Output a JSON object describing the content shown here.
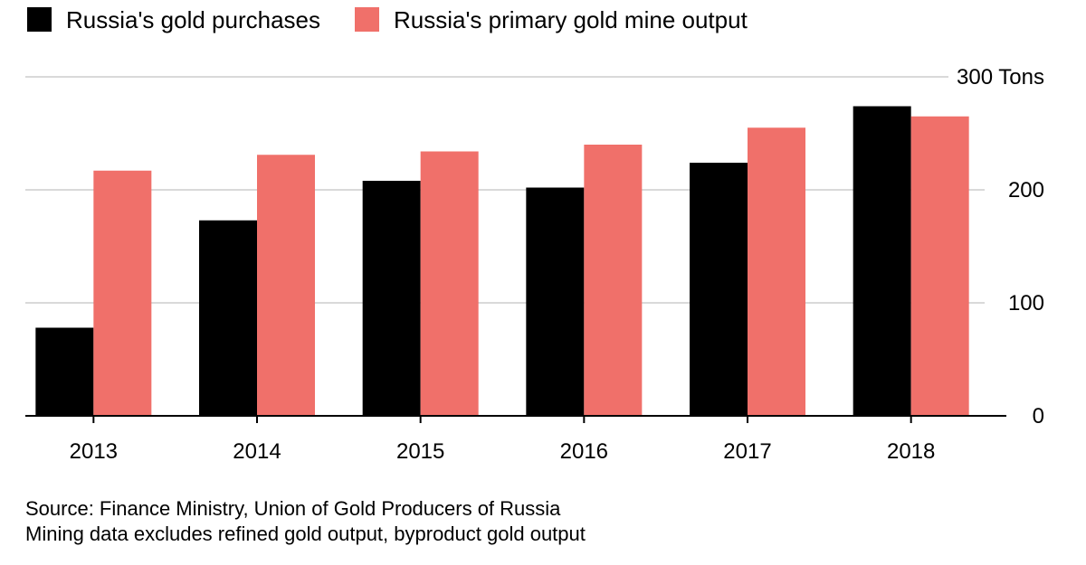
{
  "chart_data": {
    "type": "bar",
    "categories": [
      "2013",
      "2014",
      "2015",
      "2016",
      "2017",
      "2018"
    ],
    "series": [
      {
        "name": "Russia's gold purchases",
        "color": "#000000",
        "values": [
          78,
          173,
          208,
          202,
          224,
          274
        ]
      },
      {
        "name": "Russia's primary gold mine output",
        "color": "#f0706a",
        "values": [
          217,
          231,
          234,
          240,
          255,
          265
        ]
      }
    ],
    "yaxis": {
      "min": 0,
      "max": 300,
      "ticks": [
        {
          "value": 0,
          "label": "0"
        },
        {
          "value": 100,
          "label": "100"
        },
        {
          "value": 200,
          "label": "200"
        },
        {
          "value": 300,
          "label": "300 Tons"
        }
      ],
      "position": "right"
    },
    "grid": true,
    "legend_position": "top-left"
  },
  "footnotes": {
    "source": "Source: Finance Ministry, Union of Gold Producers of Russia",
    "note": "Mining data excludes refined gold output, byproduct gold output"
  }
}
